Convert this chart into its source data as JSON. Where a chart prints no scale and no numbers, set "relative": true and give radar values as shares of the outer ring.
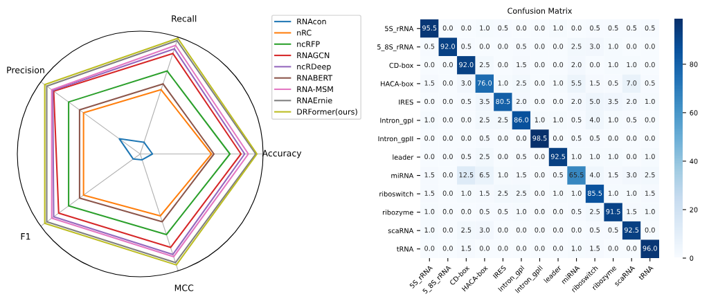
{
  "chart_data": [
    {
      "type": "radar",
      "relative": true,
      "categories": [
        "Recall",
        "Accuracy",
        "MCC",
        "F1",
        "Precision"
      ],
      "legend": "top right",
      "grid": true,
      "series": [
        {
          "name": "RNAcon",
          "color": "#1f77b4",
          "values": [
            0.1,
            0.1,
            0.05,
            0.07,
            0.21
          ]
        },
        {
          "name": "nRC",
          "color": "#ff7f0e",
          "values": [
            0.55,
            0.58,
            0.53,
            0.57,
            0.57
          ]
        },
        {
          "name": "ncRFP",
          "color": "#2ca02c",
          "values": [
            0.71,
            0.73,
            0.69,
            0.72,
            0.72
          ]
        },
        {
          "name": "RNAGCN",
          "color": "#d62728",
          "values": [
            0.86,
            0.82,
            0.8,
            0.82,
            0.87
          ]
        },
        {
          "name": "ncRDeep",
          "color": "#9467bd",
          "values": [
            0.9,
            0.85,
            0.86,
            0.87,
            0.88
          ]
        },
        {
          "name": "RNABERT",
          "color": "#8c564b",
          "values": [
            0.6,
            0.6,
            0.58,
            0.61,
            0.61
          ]
        },
        {
          "name": "RNA-MSM",
          "color": "#e377c2",
          "values": [
            0.93,
            0.88,
            0.88,
            0.89,
            0.89
          ]
        },
        {
          "name": "RNAErnie",
          "color": "#7f7f7f",
          "values": [
            0.97,
            0.94,
            0.93,
            0.94,
            0.94
          ]
        },
        {
          "name": "DRFormer(ours)",
          "color": "#bcbd22",
          "values": [
            0.99,
            0.95,
            0.95,
            0.96,
            0.96
          ]
        }
      ]
    },
    {
      "type": "heatmap",
      "title": "Confusion Matrix",
      "clim": [
        0,
        98.5
      ],
      "cticks": [
        0,
        20,
        40,
        60,
        80
      ],
      "cell_labels": [
        [
          "95.5",
          "0.0",
          "0.0",
          "1.0",
          "0.5",
          "0.0",
          "0.0",
          "1.0",
          "0.0",
          "0.5",
          "0.5",
          "0.5",
          "0.5"
        ],
        [
          "0.5",
          "92.0",
          "0.5",
          "0.0",
          "0.0",
          "0.5",
          "0.0",
          "0.0",
          "2.5",
          "3.0",
          "1.0",
          "0.0",
          "0.0"
        ],
        [
          "0.0",
          "0.0",
          "92.0",
          "2.5",
          "0.0",
          "1.5",
          "0.0",
          "0.0",
          "2.0",
          "0.0",
          "1.0",
          "1.0",
          "0.0"
        ],
        [
          "1.5",
          "0.0",
          "3.0",
          "76.0",
          "1.0",
          "2.5",
          "0.0",
          "1.0",
          "5.5",
          "1.5",
          "0.5",
          "7.0",
          "0.5"
        ],
        [
          "0.0",
          "0.0",
          "0.5",
          "3.5",
          "80.5",
          "2.0",
          "0.0",
          "0.0",
          "2.0",
          "5.0",
          "3.5",
          "2.0",
          "1.0"
        ],
        [
          "1.0",
          "0.0",
          "0.0",
          "2.5",
          "2.5",
          "86.0",
          "1.0",
          "1.0",
          "0.5",
          "4.0",
          "1.0",
          "0.5",
          "0.0"
        ],
        [
          "0.0",
          "0.0",
          "0.0",
          "0.5",
          "0.0",
          "0.0",
          "98.5",
          "0.0",
          "0.5",
          "0.5",
          "0.0",
          "0.0",
          "0.0"
        ],
        [
          "0.0",
          "0.0",
          "0.5",
          "2.5",
          "0.0",
          "0.5",
          "0.0",
          "92.5",
          "1.0",
          "1.0",
          "1.0",
          "0.0",
          "1.0"
        ],
        [
          "1.5",
          "0.0",
          "12.5",
          "6.5",
          "1.0",
          "1.5",
          "0.0",
          "0.5",
          "65.5",
          "4.0",
          "1.5",
          "3.0",
          "2.5"
        ],
        [
          "1.5",
          "0.0",
          "1.0",
          "1.5",
          "2.5",
          "2.5",
          "0.0",
          "1.0",
          "1.0",
          "85.5",
          "1.0",
          "1.0",
          "1.5"
        ],
        [
          "1.0",
          "0.0",
          "0.0",
          "0.5",
          "0.5",
          "1.0",
          "0.0",
          "0.0",
          "0.5",
          "2.5",
          "91.5",
          "1.5",
          "1.0"
        ],
        [
          "1.0",
          "0.0",
          "2.5",
          "3.0",
          "0.0",
          "0.0",
          "0.0",
          "0.0",
          "0.0",
          "0.5",
          "0.5",
          "92.5",
          "0.0"
        ],
        [
          "0.0",
          "0.0",
          "1.5",
          "0.0",
          "0.0",
          "0.0",
          "0.0",
          "0.0",
          "1.0",
          "1.5",
          "0.0",
          "0.0",
          "96.0"
        ]
      ],
      "categories": [
        "5S_rRNA",
        "5_8S_rRNA",
        "CD-box",
        "HACA-box",
        "IRES",
        "Intron_gpI",
        "Intron_gpII",
        "leader",
        "miRNA",
        "riboswitch",
        "ribozyme",
        "scaRNA",
        "tRNA"
      ],
      "y_categories": [
        "5S_rRNA",
        "5_8S_rRNA",
        "CD-box",
        "HACA-box",
        "IRES",
        "Intron_gpI",
        "Intron_gpII",
        "leader",
        "miRNA",
        "riboswitch",
        "ribozyme",
        "scaRNA",
        "tRNA"
      ],
      "cells": [
        [
          95.5,
          0.0,
          0.0,
          1.0,
          0.5,
          0.0,
          0.0,
          1.0,
          0.0,
          0.5,
          0.5,
          0.5,
          0.5
        ],
        [
          0.5,
          92.0,
          0.5,
          0.0,
          0.0,
          0.5,
          0.0,
          0.0,
          2.5,
          3.0,
          1.0,
          0.0,
          0.0
        ],
        [
          0.0,
          0.0,
          92.0,
          2.5,
          0.0,
          1.5,
          0.0,
          0.0,
          2.0,
          0.0,
          1.0,
          1.0,
          0.0
        ],
        [
          1.5,
          0.0,
          3.0,
          76.0,
          1.0,
          2.5,
          0.0,
          1.0,
          5.5,
          1.5,
          0.5,
          7.0,
          0.5
        ],
        [
          0.0,
          0.0,
          0.5,
          3.5,
          80.5,
          2.0,
          0.0,
          0.0,
          2.0,
          5.0,
          3.5,
          2.0,
          1.0
        ],
        [
          1.0,
          0.0,
          0.0,
          2.5,
          2.5,
          86.0,
          1.0,
          1.0,
          0.5,
          4.0,
          1.0,
          0.5,
          0.0
        ],
        [
          0.0,
          0.0,
          0.0,
          0.5,
          0.0,
          0.0,
          98.5,
          0.0,
          0.5,
          0.5,
          0.0,
          0.0,
          0.0
        ],
        [
          0.0,
          0.0,
          0.5,
          2.5,
          0.0,
          0.5,
          0.0,
          92.5,
          1.0,
          1.0,
          1.0,
          0.0,
          1.0
        ],
        [
          1.5,
          0.0,
          12.5,
          6.5,
          1.0,
          1.5,
          0.0,
          0.5,
          65.5,
          4.0,
          1.5,
          3.0,
          2.5
        ],
        [
          1.5,
          0.0,
          1.0,
          1.5,
          2.5,
          2.5,
          0.0,
          1.0,
          1.0,
          85.5,
          1.0,
          1.0,
          1.5
        ],
        [
          1.0,
          0.0,
          0.0,
          0.5,
          0.5,
          1.0,
          0.0,
          0.0,
          0.5,
          2.5,
          91.5,
          1.5,
          1.0
        ],
        [
          1.0,
          0.0,
          2.5,
          3.0,
          0.0,
          0.0,
          0.0,
          0.0,
          0.0,
          0.5,
          0.5,
          92.5,
          0.0
        ],
        [
          0.0,
          0.0,
          1.5,
          0.0,
          0.0,
          0.0,
          0.0,
          0.0,
          1.0,
          1.5,
          0.0,
          0.0,
          96.0
        ]
      ]
    }
  ]
}
